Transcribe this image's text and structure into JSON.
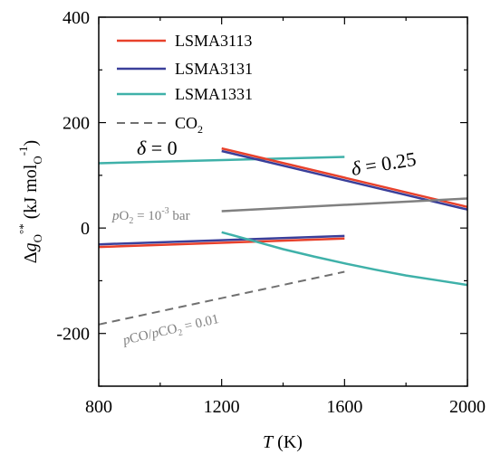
{
  "chart_data": {
    "type": "line",
    "xlabel": "T (K)",
    "ylabel": "Δg_O^°* (kJ mol_O^-1)",
    "xlim": [
      800,
      2000
    ],
    "ylim": [
      -300,
      400
    ],
    "xticks": [
      800,
      1200,
      1600,
      2000
    ],
    "yticks": [
      -200,
      0,
      200,
      400
    ],
    "x_tick_labels": [
      "800",
      "1200",
      "1600",
      "2000"
    ],
    "y_tick_labels": [
      "-200",
      "0",
      "200",
      "400"
    ],
    "legend_placement": "top-left",
    "legend": [
      {
        "label": "LSMA3113",
        "color": "#e8412b",
        "style": "solid"
      },
      {
        "label": "LSMA3131",
        "color": "#3a3f9a",
        "style": "solid"
      },
      {
        "label": "LSMA1331",
        "color": "#3fb1a9",
        "style": "solid"
      },
      {
        "label": "CO₂",
        "color": "#707070",
        "style": "dashed"
      }
    ],
    "series": [
      {
        "name": "LSMA3113",
        "state": "δ = 0",
        "color": "#e8412b",
        "x": [
          800,
          1600
        ],
        "y": [
          -36,
          -20
        ]
      },
      {
        "name": "LSMA3131",
        "state": "δ = 0",
        "color": "#3a3f9a",
        "x": [
          800,
          1600
        ],
        "y": [
          -31,
          -15
        ]
      },
      {
        "name": "LSMA1331",
        "state": "δ = 0",
        "color": "#3fb1a9",
        "x": [
          800,
          1600
        ],
        "y": [
          123,
          135
        ]
      },
      {
        "name": "LSMA3113",
        "state": "δ = 0.25",
        "color": "#e8412b",
        "x": [
          1200,
          2000
        ],
        "y": [
          151,
          40
        ]
      },
      {
        "name": "LSMA3131",
        "state": "δ = 0.25",
        "color": "#3a3f9a",
        "x": [
          1200,
          2000
        ],
        "y": [
          146,
          35
        ]
      },
      {
        "name": "LSMA1331",
        "state": "δ = 0.25",
        "color": "#3fb1a9",
        "x": [
          1200,
          1300,
          1400,
          1500,
          1600,
          1700,
          1800,
          1900,
          2000
        ],
        "y": [
          -8,
          -24,
          -40,
          -54,
          -67,
          -79,
          -90,
          -99,
          -108
        ]
      },
      {
        "name": "pO2 = 10^-3 bar",
        "color": "#808080",
        "style": "solid",
        "x": [
          1200,
          2000
        ],
        "y": [
          32,
          56
        ]
      },
      {
        "name": "CO₂ (pCO/pCO2 = 0.01)",
        "color": "#707070",
        "style": "dashed",
        "x": [
          800,
          1600
        ],
        "y": [
          -183,
          -83
        ]
      }
    ],
    "annotations": {
      "delta0": {
        "text_delta": "δ",
        "text_value": " = 0"
      },
      "delta025": {
        "text_delta": "δ",
        "text_value": " = 0.25"
      },
      "po2": {
        "p": "p",
        "o": "O",
        "sub2": "2",
        "rest": " = 10",
        "exp": "-3",
        "unit": " bar"
      },
      "pco": {
        "p1": "p",
        "co": "CO/",
        "p2": "p",
        "co2": "CO",
        "sub2": "2",
        "rest": " = 0.01"
      }
    },
    "axis_text": {
      "ylabel_delta": "Δ",
      "ylabel_g": "g",
      "ylabel_bar": "¯",
      "ylabel_sub": "O",
      "ylabel_sup": "°*",
      "ylabel_unit": " (kJ mol",
      "ylabel_unit_sub": "O",
      "ylabel_unit_sup": "-1",
      "ylabel_close": ")",
      "xlabel_T": "T",
      "xlabel_unit": " (K)",
      "co2_label": "CO",
      "co2_sub": "2"
    }
  }
}
